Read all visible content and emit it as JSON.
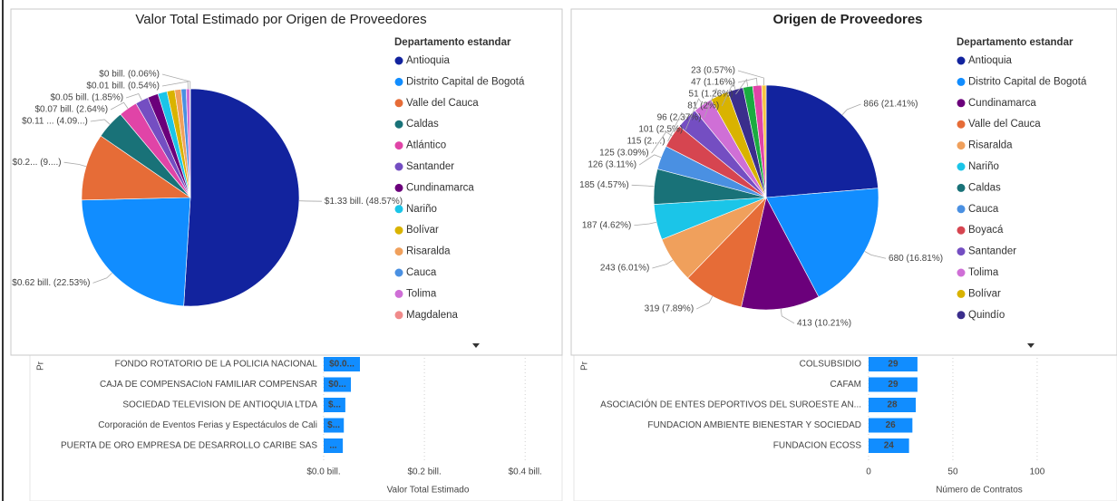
{
  "chart_data": [
    {
      "type": "pie",
      "title": "Valor Total Estimado por Origen de Proveedores",
      "legend_title": "Departamento estandar",
      "categories": [
        "Antioquia",
        "Distrito Capital de Bogotá",
        "Valle del Cauca",
        "Caldas",
        "Atlántico",
        "Santander",
        "Cundinamarca",
        "Nariño",
        "Bolívar",
        "Risaralda",
        "Cauca",
        "Tolima",
        "Magdalena"
      ],
      "values": [
        48.57,
        22.53,
        9.5,
        4.09,
        2.64,
        1.85,
        1.5,
        1.3,
        1.1,
        0.9,
        0.7,
        0.54,
        0.06
      ],
      "value_labels": [
        "$1.33 bill. (48.57%)",
        "$0.62 bill. (22.53%)",
        "$0.2... (9....)",
        "$0.11 ... (4.09...)",
        "$0.07 bill. (2.64%)",
        "$0.05 bill. (1.85%)",
        null,
        null,
        null,
        null,
        null,
        "$0.01 bill. (0.54%)",
        "$0 bill. (0.06%)"
      ],
      "colors": [
        "#12239E",
        "#118DFF",
        "#E66C37",
        "#197278",
        "#E044A7",
        "#744EC2",
        "#6B007B",
        "#1BC5E8",
        "#D9B300",
        "#F0A05C",
        "#4A90E2",
        "#CF6FD6",
        "#F08A8A"
      ]
    },
    {
      "type": "pie",
      "title": "Origen de Proveedores",
      "legend_title": "Departamento estandar",
      "categories": [
        "Antioquia",
        "Distrito Capital de Bogotá",
        "Cundinamarca",
        "Valle del Cauca",
        "Risaralda",
        "Nariño",
        "Caldas",
        "Cauca",
        "Boyacá",
        "Santander",
        "Tolima",
        "Bolívar",
        "Quindío",
        null,
        null,
        null
      ],
      "values": [
        866,
        680,
        413,
        319,
        243,
        187,
        185,
        126,
        125,
        115,
        101,
        96,
        81,
        51,
        47,
        23
      ],
      "value_labels": [
        "866 (21.41%)",
        "680 (16.81%)",
        "413 (10.21%)",
        "319 (7.89%)",
        "243 (6.01%)",
        "187 (4.62%)",
        "185 (4.57%)",
        "126 (3.11%)",
        "125 (3.09%)",
        "115 (2....)",
        "101 (2.5%)",
        "96 (2.37%)",
        "81 (2%)",
        "51 (1.26%)",
        "47 (1.16%)",
        "23 (0.57%)"
      ],
      "colors": [
        "#12239E",
        "#118DFF",
        "#6B007B",
        "#E66C37",
        "#F0A05C",
        "#1BC5E8",
        "#197278",
        "#4A90E2",
        "#D64550",
        "#744EC2",
        "#CF6FD6",
        "#D9B300",
        "#3B2E8C",
        "#1AAB40",
        "#E044A7",
        "#F5C542"
      ]
    },
    {
      "type": "barh",
      "y_label": "Pr",
      "x_label": "Valor Total Estimado",
      "categories": [
        "FONDO ROTATORIO DE LA POLICIA NACIONAL",
        "CAJA DE COMPENSACIoN FAMILIAR COMPENSAR",
        "SOCIEDAD TELEVISION DE ANTIOQUIA LTDA",
        "Corporación de Eventos Ferias y Espectáculos de Cali",
        "PUERTA DE ORO EMPRESA DE DESARROLLO CARIBE SAS"
      ],
      "values": [
        0.072,
        0.054,
        0.043,
        0.04,
        0.038
      ],
      "value_labels": [
        "$0.0...",
        "$0...",
        "$...",
        "$...",
        "..."
      ],
      "color": "#118DFF",
      "xlim": [
        0,
        0.45
      ],
      "xticks": [
        {
          "value": 0,
          "label": "$0.0 bill."
        },
        {
          "value": 0.2,
          "label": "$0.2 bill."
        },
        {
          "value": 0.4,
          "label": "$0.4 bill."
        }
      ],
      "grid": true
    },
    {
      "type": "barh",
      "y_label": "Pr",
      "x_label": "Número de Contratos",
      "categories": [
        "COLSUBSIDIO",
        "CAFAM",
        "ASOCIACIÓN DE ENTES DEPORTIVOS DEL SUROESTE AN...",
        "FUNDACION AMBIENTE BIENESTAR Y SOCIEDAD",
        "FUNDACION ECOSS"
      ],
      "values": [
        29,
        29,
        28,
        26,
        24
      ],
      "color": "#118DFF",
      "xlim": [
        0,
        135
      ],
      "xticks": [
        0,
        50,
        100
      ],
      "grid": true
    }
  ]
}
